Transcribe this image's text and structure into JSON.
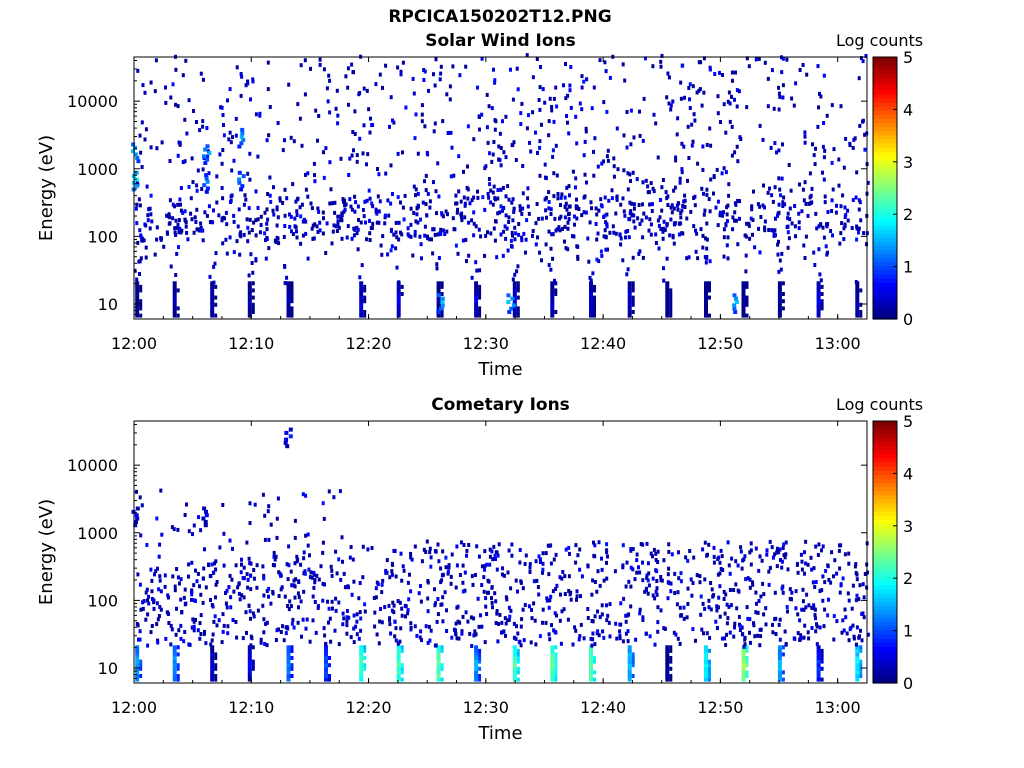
{
  "figure_title": "RPCICA150202T12.PNG",
  "chart_data": [
    {
      "type": "heatmap",
      "title": "Solar Wind Ions",
      "xlabel": "Time",
      "ylabel": "Energy (eV)",
      "y_scale": "log",
      "ylim": [
        6,
        45000
      ],
      "x_range": [
        "12:00",
        "13:02.5"
      ],
      "x_ticks": [
        "12:00",
        "12:10",
        "12:20",
        "12:30",
        "12:40",
        "12:50",
        "13:00"
      ],
      "y_ticks": [
        "10",
        "100",
        "1000",
        "10000"
      ],
      "colorbar": {
        "label": "Log counts",
        "min": 0,
        "max": 5,
        "ticks": [
          "0",
          "1",
          "2",
          "3",
          "4",
          "5"
        ],
        "colormap": "jet"
      },
      "periodic_low_energy_bursts_minutes": [
        0.1,
        3.3,
        6.5,
        9.7,
        13.0,
        19.2,
        22.4,
        25.8,
        29.0,
        32.3,
        35.5,
        38.8,
        42.1,
        45.3,
        48.6,
        51.8,
        54.9,
        58.2,
        61.5
      ],
      "bright_features": [
        {
          "time": "12:00",
          "energy_eV": 650,
          "log_counts": 1.9
        },
        {
          "time": "12:00",
          "energy_eV": 1700,
          "log_counts": 1.6
        },
        {
          "time": "12:06",
          "energy_eV": 1600,
          "log_counts": 1.5
        },
        {
          "time": "12:06",
          "energy_eV": 600,
          "log_counts": 1.3
        },
        {
          "time": "12:09",
          "energy_eV": 2800,
          "log_counts": 1.5
        },
        {
          "time": "12:09",
          "energy_eV": 650,
          "log_counts": 1.3
        },
        {
          "time": "12:26",
          "energy_eV": 10,
          "log_counts": 1.6
        },
        {
          "time": "12:32",
          "energy_eV": 10,
          "log_counts": 1.6
        },
        {
          "time": "12:51",
          "energy_eV": 10,
          "log_counts": 1.6
        }
      ]
    },
    {
      "type": "heatmap",
      "title": "Cometary Ions",
      "xlabel": "Time",
      "ylabel": "Energy (eV)",
      "y_scale": "log",
      "ylim": [
        6,
        45000
      ],
      "x_range": [
        "12:00",
        "13:02.5"
      ],
      "x_ticks": [
        "12:00",
        "12:10",
        "12:20",
        "12:30",
        "12:40",
        "12:50",
        "13:00"
      ],
      "y_ticks": [
        "10",
        "100",
        "1000",
        "10000"
      ],
      "colorbar": {
        "label": "Log counts",
        "min": 0,
        "max": 5,
        "ticks": [
          "0",
          "1",
          "2",
          "3",
          "4",
          "5"
        ],
        "colormap": "jet"
      },
      "periodic_low_energy_bursts_minutes": [
        0.1,
        3.3,
        6.5,
        9.7,
        13.0,
        16.2,
        19.2,
        22.4,
        25.8,
        29.0,
        32.3,
        35.5,
        38.8,
        42.1,
        45.3,
        48.6,
        51.8,
        54.9,
        58.2,
        61.5
      ],
      "burst_peak_log_counts": [
        1.6,
        1.6,
        0.6,
        0.7,
        1.4,
        1.2,
        2.4,
        2.4,
        2.5,
        1.6,
        2.4,
        2.5,
        2.5,
        1.8,
        0.3,
        2.1,
        2.8,
        1.7,
        1.0,
        2.0
      ],
      "bright_features": [
        {
          "time": "12:00",
          "energy_eV": 1700,
          "log_counts": 0.6
        },
        {
          "time": "12:06",
          "energy_eV": 1700,
          "log_counts": 0.6
        },
        {
          "time": "12:13",
          "energy_eV": 25000,
          "log_counts": 0.8
        }
      ]
    }
  ]
}
